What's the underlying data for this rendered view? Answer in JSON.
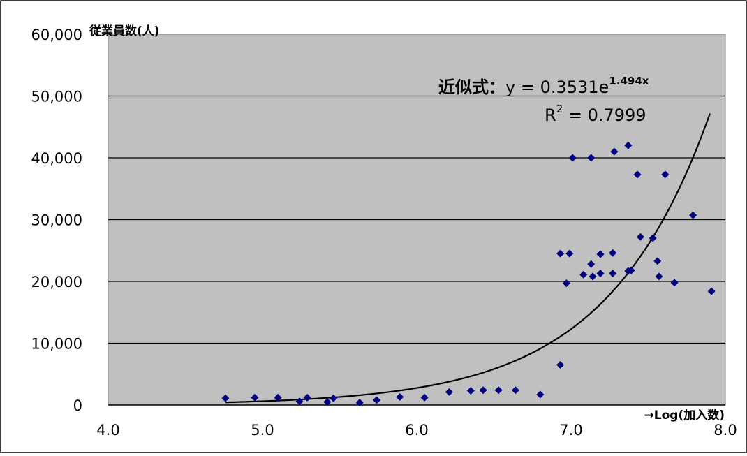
{
  "chart_data": {
    "type": "scatter",
    "xlabel": "→Log(加入数)",
    "ylabel": "従業員数(人)",
    "xlim": [
      4.0,
      8.0
    ],
    "ylim": [
      0,
      60000
    ],
    "x_ticks": [
      "4.0",
      "5.0",
      "6.0",
      "7.0",
      "8.0"
    ],
    "y_ticks": [
      "0",
      "10,000",
      "20,000",
      "30,000",
      "40,000",
      "50,000",
      "60,000"
    ],
    "grid": true,
    "series": [
      {
        "type": "scatter",
        "color": "#00007f",
        "marker": "diamond",
        "points": [
          [
            4.76,
            1100
          ],
          [
            4.95,
            1200
          ],
          [
            5.1,
            1200
          ],
          [
            5.24,
            600
          ],
          [
            5.29,
            1200
          ],
          [
            5.42,
            500
          ],
          [
            5.46,
            1100
          ],
          [
            5.63,
            400
          ],
          [
            5.74,
            800
          ],
          [
            5.89,
            1300
          ],
          [
            6.05,
            1200
          ],
          [
            6.21,
            2100
          ],
          [
            6.35,
            2300
          ],
          [
            6.43,
            2400
          ],
          [
            6.53,
            2400
          ],
          [
            6.64,
            2400
          ],
          [
            6.8,
            1700
          ],
          [
            6.93,
            6500
          ],
          [
            6.93,
            24500
          ],
          [
            6.99,
            24500
          ],
          [
            6.97,
            19700
          ],
          [
            7.01,
            40000
          ],
          [
            7.08,
            21100
          ],
          [
            7.13,
            22800
          ],
          [
            7.13,
            40000
          ],
          [
            7.14,
            20800
          ],
          [
            7.19,
            24400
          ],
          [
            7.19,
            21300
          ],
          [
            7.27,
            24600
          ],
          [
            7.27,
            21300
          ],
          [
            7.28,
            41000
          ],
          [
            7.37,
            42000
          ],
          [
            7.37,
            21700
          ],
          [
            7.39,
            21800
          ],
          [
            7.43,
            37300
          ],
          [
            7.45,
            27200
          ],
          [
            7.53,
            27000
          ],
          [
            7.56,
            23300
          ],
          [
            7.57,
            20800
          ],
          [
            7.61,
            37300
          ],
          [
            7.67,
            19800
          ],
          [
            7.79,
            30700
          ],
          [
            7.91,
            18400
          ]
        ]
      },
      {
        "type": "trendline",
        "color": "#000000",
        "equation": "y = 0.3531e^(1.494x)",
        "a": 0.3531,
        "b": 1.494,
        "x_range": [
          4.76,
          7.9
        ]
      }
    ],
    "annotations": {
      "equation_prefix": "近似式：",
      "equation_main": "y = 0.3531e",
      "equation_exp": "1.494x",
      "r2_label": "R",
      "r2_sup": "2",
      "r2_value": " = 0.7999"
    },
    "colors": {
      "plot_background": "#c0c0c0",
      "gridline": "#000000",
      "marker": "#00007f",
      "trendline": "#000000"
    }
  }
}
